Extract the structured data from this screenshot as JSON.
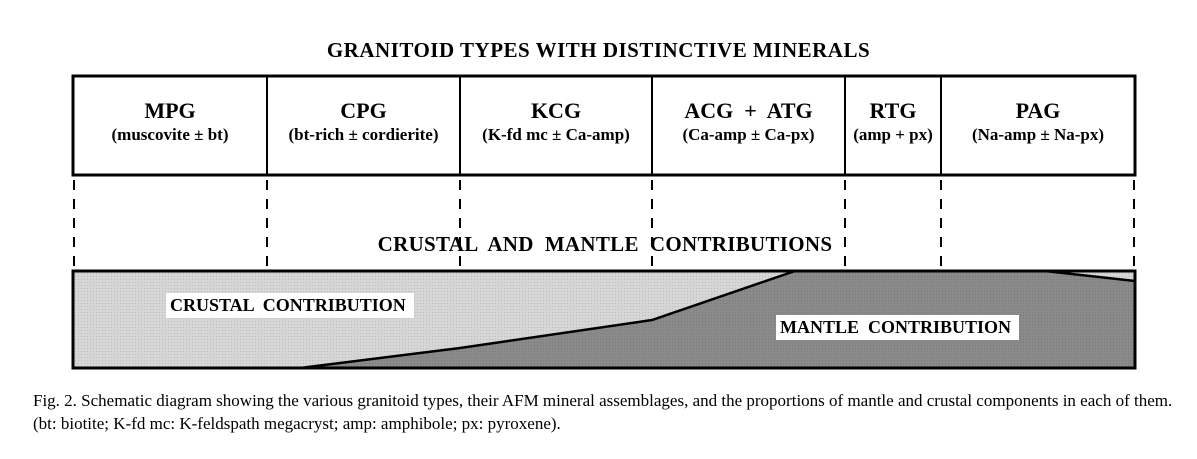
{
  "title": "GRANITOID TYPES WITH DISTINCTIVE MINERALS",
  "columns": [
    {
      "name": "MPG",
      "minerals": "(muscovite ± bt)"
    },
    {
      "name": "CPG",
      "minerals": "(bt-rich ± cordierite)"
    },
    {
      "name": "KCG",
      "minerals": "(K-fd mc ± Ca-amp)"
    },
    {
      "name": "ACG  +  ATG",
      "minerals": "(Ca-amp ± Ca-px)"
    },
    {
      "name": "RTG",
      "minerals": "(amp + px)"
    },
    {
      "name": "PAG",
      "minerals": "(Na-amp ± Na-px)"
    }
  ],
  "subtitle": "CRUSTAL  AND  MANTLE  CONTRIBUTIONS",
  "crustal_label": "CRUSTAL  CONTRIBUTION",
  "mantle_label": "MANTLE  CONTRIBUTION",
  "colors": {
    "crustal": "#d6d6d6",
    "mantle": "#8a8a8a"
  },
  "caption": "Fig. 2. Schematic diagram showing the various granitoid types, their AFM mineral assemblages, and the proportions of mantle and crustal components in each of them. (bt: biotite; K-fd mc: K-feldspath megacryst; amp: amphibole; px: pyroxene)."
}
